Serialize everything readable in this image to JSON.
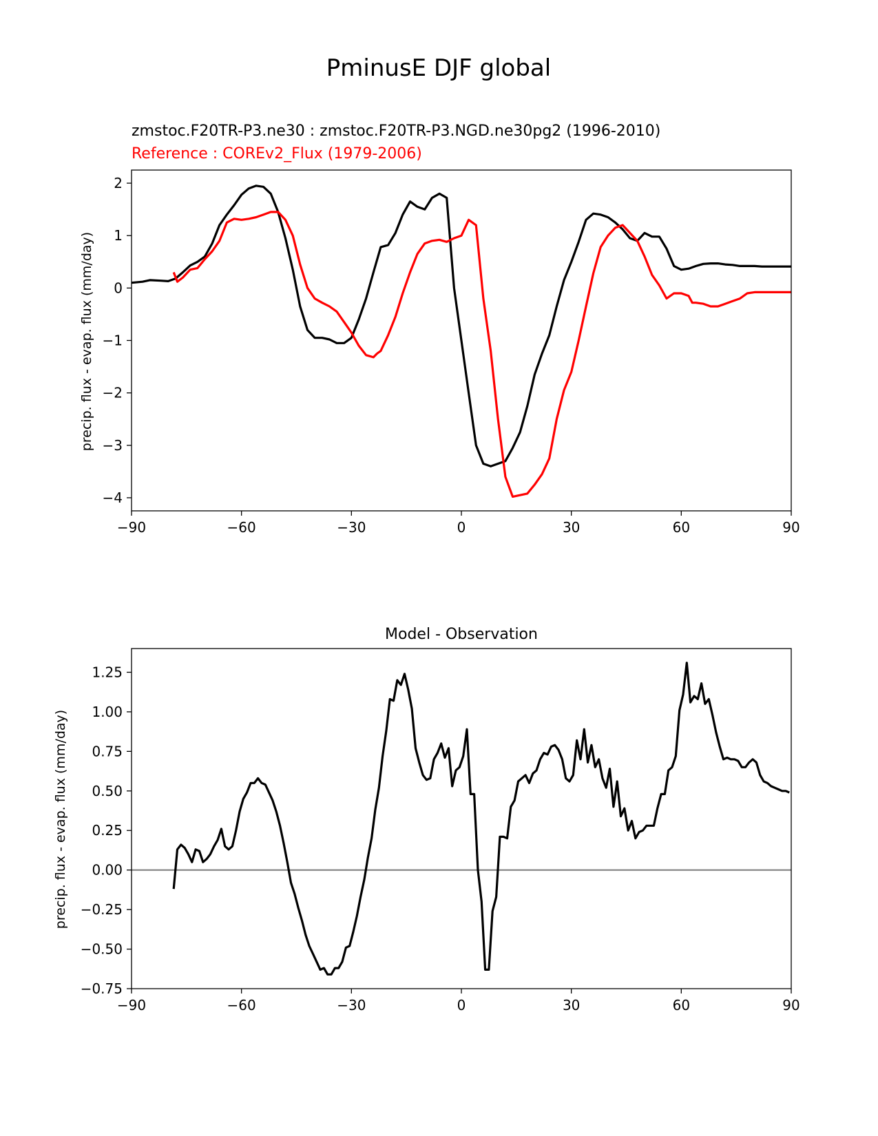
{
  "figure": {
    "suptitle": "PminusE DJF global"
  },
  "chart_data": [
    {
      "type": "line",
      "title_left_lines": [
        "zmstoc.F20TR-P3.ne30 : zmstoc.F20TR-P3.NGD.ne30pg2 (1996-2010)",
        "Reference : COREv2_Flux (1979-2006)"
      ],
      "xlabel": "",
      "ylabel": "precip. flux - evap. flux (mm/day)",
      "xlim": [
        -90,
        90
      ],
      "ylim": [
        -4.25,
        2.25
      ],
      "xticks": [
        -90,
        -60,
        -30,
        0,
        30,
        60,
        90
      ],
      "xtick_labels": [
        "−90",
        "−60",
        "−30",
        "0",
        "30",
        "60",
        "90"
      ],
      "yticks": [
        -4,
        -3,
        -2,
        -1,
        0,
        1,
        2
      ],
      "ytick_labels": [
        "−4",
        "−3",
        "−2",
        "−1",
        "0",
        "1",
        "2"
      ],
      "series": [
        {
          "name": "zmstoc.F20TR-P3.ne30 : zmstoc.F20TR-P3.NGD.ne30pg2 (1996-2010)",
          "color": "#000000",
          "x": [
            -90,
            -87,
            -85,
            -82,
            -80,
            -78,
            -76,
            -74,
            -72,
            -70,
            -68,
            -66,
            -64,
            -62,
            -60,
            -58,
            -56,
            -54,
            -52,
            -50,
            -48,
            -46,
            -44,
            -42,
            -40,
            -38,
            -36,
            -34,
            -32,
            -30,
            -28,
            -26,
            -24,
            -22,
            -20,
            -18,
            -16,
            -14,
            -12,
            -10,
            -8,
            -6,
            -4,
            -2,
            0,
            2,
            4,
            6,
            8,
            10,
            12,
            14,
            16,
            18,
            20,
            22,
            24,
            26,
            28,
            30,
            32,
            34,
            36,
            38,
            40,
            42,
            44,
            46,
            48,
            50,
            52,
            54,
            56,
            58,
            60,
            62,
            64,
            66,
            68,
            70,
            72,
            74,
            76,
            78,
            80,
            82,
            84,
            86,
            88,
            90
          ],
          "values": [
            0.1,
            0.12,
            0.15,
            0.14,
            0.13,
            0.18,
            0.3,
            0.43,
            0.5,
            0.6,
            0.85,
            1.2,
            1.4,
            1.58,
            1.78,
            1.9,
            1.95,
            1.93,
            1.8,
            1.45,
            0.95,
            0.35,
            -0.35,
            -0.8,
            -0.95,
            -0.95,
            -0.98,
            -1.05,
            -1.05,
            -0.95,
            -0.6,
            -0.2,
            0.3,
            0.78,
            0.82,
            1.05,
            1.4,
            1.65,
            1.55,
            1.5,
            1.72,
            1.8,
            1.72,
            0.0,
            -1.0,
            -2.0,
            -3.0,
            -3.35,
            -3.4,
            -3.35,
            -3.3,
            -3.05,
            -2.75,
            -2.25,
            -1.65,
            -1.25,
            -0.9,
            -0.35,
            0.15,
            0.5,
            0.88,
            1.3,
            1.42,
            1.4,
            1.35,
            1.25,
            1.12,
            0.95,
            0.9,
            1.05,
            0.98,
            0.98,
            0.75,
            0.42,
            0.35,
            0.37,
            0.42,
            0.46,
            0.47,
            0.47,
            0.45,
            0.44,
            0.42,
            0.42,
            0.42,
            0.41,
            0.41,
            0.41,
            0.41,
            0.41
          ]
        },
        {
          "name": "Reference : COREv2_Flux (1979-2006)",
          "color": "#ff0000",
          "x": [
            -78.5,
            -77.5,
            -76,
            -74,
            -72,
            -70,
            -68,
            -66,
            -64,
            -62,
            -60,
            -58,
            -56,
            -54,
            -52,
            -50,
            -48,
            -46,
            -44,
            -42,
            -40,
            -38,
            -36,
            -34,
            -32,
            -30,
            -28,
            -26,
            -25,
            -24,
            -23,
            -22,
            -20,
            -18,
            -16,
            -14,
            -12,
            -10,
            -8,
            -6,
            -4,
            -2,
            0,
            2,
            4,
            6,
            8,
            10,
            12,
            14,
            16,
            18,
            20,
            22,
            24,
            26,
            28,
            30,
            32,
            34,
            36,
            38,
            40,
            42,
            44,
            46,
            48,
            50,
            52,
            54,
            56,
            58,
            60,
            62,
            63,
            64,
            66,
            68,
            70,
            72,
            74,
            76,
            78,
            80,
            82,
            84,
            86,
            88,
            90
          ],
          "values": [
            0.3,
            0.12,
            0.2,
            0.35,
            0.38,
            0.55,
            0.7,
            0.9,
            1.25,
            1.32,
            1.3,
            1.32,
            1.35,
            1.4,
            1.45,
            1.45,
            1.3,
            1.0,
            0.45,
            0.0,
            -0.2,
            -0.28,
            -0.35,
            -0.45,
            -0.65,
            -0.85,
            -1.1,
            -1.28,
            -1.3,
            -1.32,
            -1.25,
            -1.2,
            -0.9,
            -0.55,
            -0.1,
            0.3,
            0.65,
            0.85,
            0.9,
            0.92,
            0.88,
            0.95,
            1.0,
            1.3,
            1.2,
            -0.2,
            -1.2,
            -2.5,
            -3.6,
            -3.98,
            -3.95,
            -3.92,
            -3.75,
            -3.55,
            -3.25,
            -2.5,
            -1.95,
            -1.6,
            -1.0,
            -0.35,
            0.28,
            0.78,
            1.0,
            1.15,
            1.2,
            1.05,
            0.9,
            0.6,
            0.25,
            0.05,
            -0.2,
            -0.1,
            -0.1,
            -0.15,
            -0.28,
            -0.28,
            -0.3,
            -0.35,
            -0.35,
            -0.3,
            -0.25,
            -0.2,
            -0.1,
            -0.08,
            -0.08,
            -0.08,
            -0.08,
            -0.08,
            -0.08
          ]
        }
      ]
    },
    {
      "type": "line",
      "title": "Model - Observation",
      "xlabel": "",
      "ylabel": "precip. flux - evap. flux (mm/day)",
      "xlim": [
        -90,
        90
      ],
      "ylim": [
        -0.75,
        1.4
      ],
      "xticks": [
        -90,
        -60,
        -30,
        0,
        30,
        60,
        90
      ],
      "xtick_labels": [
        "−90",
        "−60",
        "−30",
        "0",
        "30",
        "60",
        "90"
      ],
      "yticks": [
        -0.75,
        -0.5,
        -0.25,
        0.0,
        0.25,
        0.5,
        0.75,
        1.0,
        1.25
      ],
      "ytick_labels": [
        "−0.75",
        "−0.50",
        "−0.25",
        "0.00",
        "0.25",
        "0.50",
        "0.75",
        "1.00",
        "1.25"
      ],
      "zero_line_color": "#808080",
      "series": [
        {
          "name": "Model - Observation",
          "color": "#000000",
          "x": [
            -78.5,
            -77.5,
            -76.5,
            -75.5,
            -74.5,
            -73.5,
            -72.5,
            -71.5,
            -70.5,
            -69.5,
            -68.5,
            -67.5,
            -66.5,
            -65.5,
            -64.5,
            -63.5,
            -62.5,
            -61.5,
            -60.5,
            -59.5,
            -58.5,
            -57.5,
            -56.5,
            -55.5,
            -54.5,
            -53.5,
            -52.5,
            -51.5,
            -50.5,
            -49.5,
            -48.5,
            -47.5,
            -46.5,
            -45.5,
            -44.5,
            -43.5,
            -42.5,
            -41.5,
            -40.5,
            -39.5,
            -38.5,
            -37.5,
            -36.5,
            -35.5,
            -34.5,
            -33.5,
            -32.5,
            -31.5,
            -30.5,
            -29.5,
            -28.5,
            -27.5,
            -26.5,
            -25.5,
            -24.5,
            -23.5,
            -22.5,
            -21.5,
            -20.5,
            -19.5,
            -18.5,
            -17.5,
            -16.5,
            -15.5,
            -14.5,
            -13.5,
            -12.5,
            -11.5,
            -10.5,
            -9.5,
            -8.5,
            -7.5,
            -6.5,
            -5.5,
            -4.5,
            -3.5,
            -2.5,
            -1.5,
            -0.5,
            0.5,
            1.5,
            2.5,
            3.5,
            4.5,
            5.5,
            6.5,
            7.5,
            8.5,
            9.5,
            10.5,
            11.5,
            12.5,
            13.5,
            14.5,
            15.5,
            16.5,
            17.5,
            18.5,
            19.5,
            20.5,
            21.5,
            22.5,
            23.5,
            24.5,
            25.5,
            26.5,
            27.5,
            28.5,
            29.5,
            30.5,
            31.5,
            32.5,
            33.5,
            34.5,
            35.5,
            36.5,
            37.5,
            38.5,
            39.5,
            40.5,
            41.5,
            42.5,
            43.5,
            44.5,
            45.5,
            46.5,
            47.5,
            48.5,
            49.5,
            50.5,
            51.5,
            52.5,
            53.5,
            54.5,
            55.5,
            56.5,
            57.5,
            58.5,
            59.5,
            60.5,
            61.5,
            62.5,
            63.5,
            64.5,
            65.5,
            66.5,
            67.5,
            68.5,
            69.5,
            70.5,
            71.5,
            72.5,
            73.5,
            74.5,
            75.5,
            76.5,
            77.5,
            78.5,
            79.5,
            80.5,
            81.5,
            82.5,
            83.5,
            84.5,
            85.5,
            86.5,
            87.5,
            88.5,
            89.5
          ],
          "values": [
            -0.12,
            0.13,
            0.16,
            0.14,
            0.1,
            0.05,
            0.13,
            0.12,
            0.05,
            0.07,
            0.1,
            0.15,
            0.19,
            0.26,
            0.15,
            0.13,
            0.15,
            0.25,
            0.37,
            0.45,
            0.49,
            0.55,
            0.55,
            0.58,
            0.55,
            0.54,
            0.49,
            0.44,
            0.37,
            0.28,
            0.17,
            0.05,
            -0.08,
            -0.15,
            -0.24,
            -0.32,
            -0.41,
            -0.48,
            -0.53,
            -0.58,
            -0.63,
            -0.62,
            -0.66,
            -0.66,
            -0.62,
            -0.62,
            -0.58,
            -0.49,
            -0.48,
            -0.39,
            -0.29,
            -0.17,
            -0.06,
            0.08,
            0.2,
            0.38,
            0.52,
            0.72,
            0.88,
            1.08,
            1.07,
            1.2,
            1.17,
            1.24,
            1.14,
            1.02,
            0.77,
            0.68,
            0.6,
            0.57,
            0.58,
            0.7,
            0.74,
            0.8,
            0.71,
            0.77,
            0.53,
            0.63,
            0.65,
            0.72,
            0.89,
            0.48,
            0.48,
            0.0,
            -0.2,
            -0.63,
            -0.63,
            -0.26,
            -0.17,
            0.21,
            0.21,
            0.2,
            0.4,
            0.44,
            0.56,
            0.58,
            0.6,
            0.55,
            0.61,
            0.63,
            0.7,
            0.74,
            0.73,
            0.78,
            0.79,
            0.76,
            0.7,
            0.58,
            0.56,
            0.6,
            0.82,
            0.7,
            0.89,
            0.68,
            0.79,
            0.65,
            0.7,
            0.58,
            0.52,
            0.64,
            0.4,
            0.56,
            0.34,
            0.39,
            0.25,
            0.31,
            0.2,
            0.24,
            0.25,
            0.28,
            0.28,
            0.28,
            0.39,
            0.48,
            0.48,
            0.63,
            0.65,
            0.72,
            1.01,
            1.11,
            1.31,
            1.06,
            1.1,
            1.08,
            1.18,
            1.05,
            1.08,
            0.98,
            0.87,
            0.78,
            0.7,
            0.71,
            0.7,
            0.7,
            0.69,
            0.65,
            0.65,
            0.68,
            0.7,
            0.68,
            0.6,
            0.56,
            0.55,
            0.53,
            0.52,
            0.51,
            0.5,
            0.5,
            0.49
          ]
        }
      ]
    }
  ]
}
